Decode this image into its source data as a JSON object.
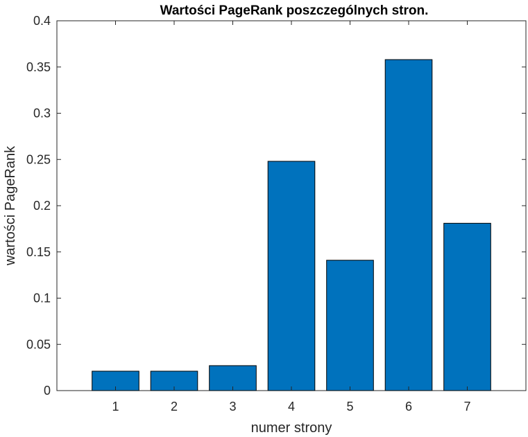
{
  "chart_data": {
    "type": "bar",
    "title": "Wartości PageRank poszczególnych stron.",
    "xlabel": "numer strony",
    "ylabel": "wartości PageRank",
    "categories": [
      "1",
      "2",
      "3",
      "4",
      "5",
      "6",
      "7"
    ],
    "values": [
      0.021,
      0.021,
      0.027,
      0.248,
      0.141,
      0.358,
      0.181
    ],
    "ylim": [
      0,
      0.4
    ],
    "xlim": [
      0,
      8
    ],
    "yticks": [
      0,
      0.05,
      0.1,
      0.15,
      0.2,
      0.25,
      0.3,
      0.35,
      0.4
    ],
    "ytick_labels": [
      "0",
      "0.05",
      "0.1",
      "0.15",
      "0.2",
      "0.25",
      "0.3",
      "0.35",
      "0.4"
    ],
    "bar_width": 0.8,
    "grid": false,
    "colors": {
      "bar_fill": "#0072BD",
      "bar_edge": "#000000",
      "axis": "#262626"
    }
  }
}
